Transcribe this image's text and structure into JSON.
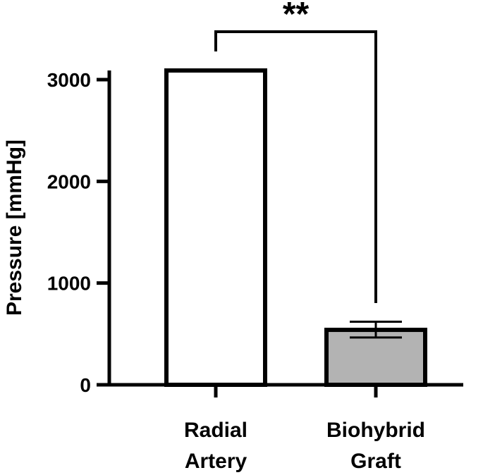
{
  "chart_data": {
    "type": "bar",
    "ylabel": "Pressure [mmHg]",
    "xlabel": "",
    "title": "",
    "ylim": [
      0,
      3000
    ],
    "yticks": [
      "0",
      "1000",
      "2000",
      "3000"
    ],
    "categories": [
      {
        "line1": "Radial",
        "line2": "Artery"
      },
      {
        "line1": "Biohybrid",
        "line2": "Graft"
      }
    ],
    "values": [
      3090,
      540
    ],
    "error_bars": [
      null,
      {
        "low": 465,
        "high": 620
      }
    ],
    "fills": [
      "#ffffff",
      "#b3b3b3"
    ],
    "significance": "**",
    "grid": false
  }
}
